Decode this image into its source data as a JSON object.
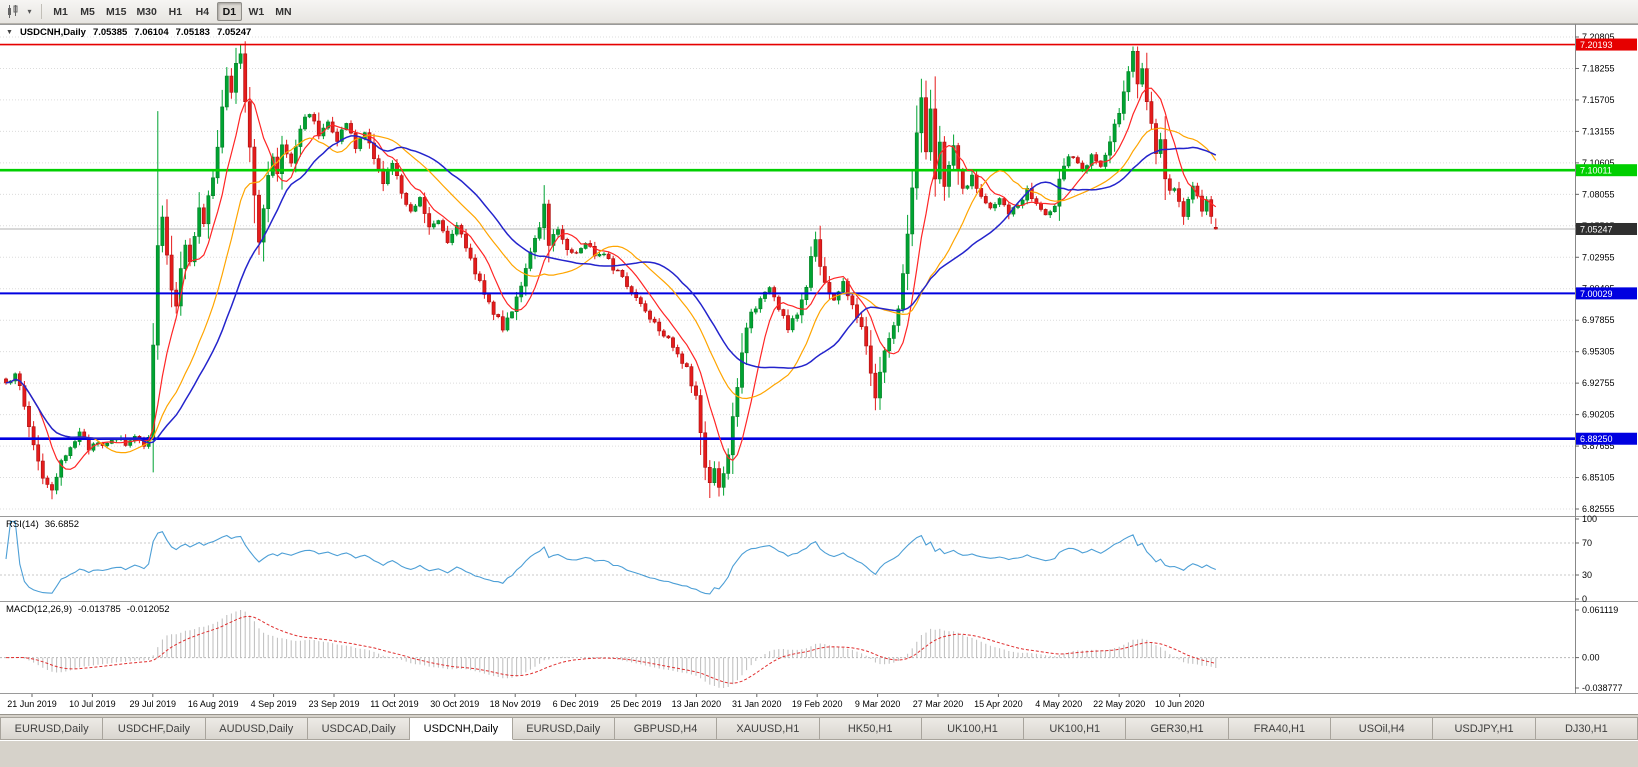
{
  "toolbar": {
    "timeframes": [
      "M1",
      "M5",
      "M15",
      "M30",
      "H1",
      "H4",
      "D1",
      "W1",
      "MN"
    ],
    "active_timeframe": "D1"
  },
  "chart": {
    "symbol_label": "USDCNH,Daily",
    "ohlc": {
      "open": "7.05385",
      "high": "7.06104",
      "low": "7.05183",
      "close": "7.05247"
    },
    "price_scale": [
      "7.20805",
      "7.18255",
      "7.15705",
      "7.13155",
      "7.10605",
      "7.08055",
      "7.05505",
      "7.02955",
      "7.00405",
      "6.97855",
      "6.95305",
      "6.92755",
      "6.90205",
      "6.87655",
      "6.85105",
      "6.82555"
    ],
    "levels": [
      {
        "price": 7.20193,
        "label": "7.20193",
        "color": "#e60000",
        "width": 1.6
      },
      {
        "price": 7.10011,
        "label": "7.10011",
        "color": "#00cf00",
        "width": 2.6
      },
      {
        "price": 7.00029,
        "label": "7.00029",
        "color": "#0000e0",
        "width": 2
      },
      {
        "price": 6.8825,
        "label": "6.88250",
        "color": "#0000e0",
        "width": 2.6
      }
    ],
    "current_price": {
      "value": 7.05247,
      "label": "7.05247",
      "color": "#2f2f2f"
    }
  },
  "indicators": {
    "rsi": {
      "label": "RSI(14)",
      "value": "36.6852",
      "scale": [
        "100",
        "70",
        "30",
        "0"
      ],
      "levels": [
        70,
        30
      ]
    },
    "macd": {
      "label": "MACD(12,26,9)",
      "value_main": "-0.013785",
      "value_signal": "-0.012052",
      "scale": [
        "0.061119",
        "0.00",
        "-0.038777"
      ]
    }
  },
  "tabs": {
    "items": [
      "EURUSD,Daily",
      "USDCHF,Daily",
      "AUDUSD,Daily",
      "USDCAD,Daily",
      "USDCNH,Daily",
      "EURUSD,Daily",
      "GBPUSD,H4",
      "XAUUSD,H1",
      "HK50,H1",
      "UK100,H1",
      "UK100,H1",
      "GER30,H1",
      "FRA40,H1",
      "USOil,H4",
      "USDJPY,H1",
      "DJ30,H1"
    ],
    "active_index": 4
  },
  "chart_data": {
    "type": "candlestick+indicators",
    "symbol": "USDCNH",
    "timeframe": "Daily",
    "bars": 264,
    "y_range": [
      6.82555,
      7.20805
    ],
    "last_ohlc": {
      "open": 7.05385,
      "high": 7.06104,
      "low": 7.05183,
      "close": 7.05247
    },
    "horizontal_lines": [
      7.20193,
      7.10011,
      7.00029,
      6.8825
    ],
    "rsi_value": 36.6852,
    "macd_value": -0.013785,
    "macd_signal_value": -0.012052,
    "date_labels": [
      "21 Jun 2019",
      "10 Jul 2019",
      "29 Jul 2019",
      "16 Aug 2019",
      "4 Sep 2019",
      "23 Sep 2019",
      "11 Oct 2019",
      "30 Oct 2019",
      "18 Nov 2019",
      "6 Dec 2019",
      "25 Dec 2019",
      "13 Jan 2020",
      "31 Jan 2020",
      "19 Feb 2020",
      "9 Mar 2020",
      "27 Mar 2020",
      "15 Apr 2020",
      "4 May 2020",
      "22 May 2020",
      "10 Jun 2020"
    ],
    "price_anchors": [
      [
        0,
        6.925
      ],
      [
        2,
        6.938
      ],
      [
        4,
        6.908
      ],
      [
        6,
        6.878
      ],
      [
        8,
        6.852
      ],
      [
        10,
        6.838
      ],
      [
        12,
        6.862
      ],
      [
        14,
        6.878
      ],
      [
        16,
        6.886
      ],
      [
        18,
        6.875
      ],
      [
        20,
        6.882
      ],
      [
        22,
        6.876
      ],
      [
        24,
        6.884
      ],
      [
        26,
        6.878
      ],
      [
        28,
        6.885
      ],
      [
        30,
        6.879
      ],
      [
        31,
        6.885
      ],
      [
        32,
        6.958
      ],
      [
        33,
        7.042
      ],
      [
        34,
        7.062
      ],
      [
        35,
        7.032
      ],
      [
        36,
        7.005
      ],
      [
        37,
        6.992
      ],
      [
        38,
        7.018
      ],
      [
        39,
        7.042
      ],
      [
        40,
        7.028
      ],
      [
        41,
        7.048
      ],
      [
        42,
        7.068
      ],
      [
        43,
        7.055
      ],
      [
        44,
        7.078
      ],
      [
        45,
        7.095
      ],
      [
        46,
        7.118
      ],
      [
        47,
        7.152
      ],
      [
        48,
        7.175
      ],
      [
        49,
        7.162
      ],
      [
        50,
        7.185
      ],
      [
        51,
        7.196
      ],
      [
        52,
        7.158
      ],
      [
        53,
        7.12
      ],
      [
        54,
        7.078
      ],
      [
        55,
        7.042
      ],
      [
        56,
        7.068
      ],
      [
        57,
        7.095
      ],
      [
        58,
        7.112
      ],
      [
        59,
        7.098
      ],
      [
        60,
        7.122
      ],
      [
        62,
        7.108
      ],
      [
        64,
        7.135
      ],
      [
        66,
        7.148
      ],
      [
        68,
        7.128
      ],
      [
        70,
        7.142
      ],
      [
        72,
        7.125
      ],
      [
        74,
        7.138
      ],
      [
        76,
        7.118
      ],
      [
        78,
        7.132
      ],
      [
        80,
        7.108
      ],
      [
        82,
        7.092
      ],
      [
        84,
        7.105
      ],
      [
        86,
        7.082
      ],
      [
        88,
        7.068
      ],
      [
        90,
        7.078
      ],
      [
        92,
        7.055
      ],
      [
        94,
        7.062
      ],
      [
        96,
        7.042
      ],
      [
        98,
        7.058
      ],
      [
        100,
        7.035
      ],
      [
        102,
        7.018
      ],
      [
        104,
        7.002
      ],
      [
        106,
        6.985
      ],
      [
        108,
        6.972
      ],
      [
        110,
        6.988
      ],
      [
        112,
        7.008
      ],
      [
        114,
        7.032
      ],
      [
        116,
        7.052
      ],
      [
        117,
        7.072
      ],
      [
        118,
        7.042
      ],
      [
        120,
        7.052
      ],
      [
        122,
        7.038
      ],
      [
        124,
        7.032
      ],
      [
        126,
        7.042
      ],
      [
        128,
        7.032
      ],
      [
        130,
        7.035
      ],
      [
        132,
        7.022
      ],
      [
        134,
        7.012
      ],
      [
        136,
        7.002
      ],
      [
        138,
        6.992
      ],
      [
        140,
        6.982
      ],
      [
        142,
        6.972
      ],
      [
        144,
        6.965
      ],
      [
        146,
        6.952
      ],
      [
        148,
        6.938
      ],
      [
        150,
        6.915
      ],
      [
        151,
        6.888
      ],
      [
        152,
        6.862
      ],
      [
        153,
        6.845
      ],
      [
        154,
        6.858
      ],
      [
        155,
        6.842
      ],
      [
        156,
        6.852
      ],
      [
        157,
        6.872
      ],
      [
        158,
        6.898
      ],
      [
        159,
        6.925
      ],
      [
        160,
        6.952
      ],
      [
        161,
        6.972
      ],
      [
        162,
        6.985
      ],
      [
        164,
        6.995
      ],
      [
        166,
        7.005
      ],
      [
        168,
        6.988
      ],
      [
        170,
        6.972
      ],
      [
        172,
        6.985
      ],
      [
        174,
        7.005
      ],
      [
        175,
        7.032
      ],
      [
        176,
        7.045
      ],
      [
        177,
        7.022
      ],
      [
        178,
        7.008
      ],
      [
        180,
        6.995
      ],
      [
        182,
        7.008
      ],
      [
        184,
        6.992
      ],
      [
        186,
        6.975
      ],
      [
        187,
        6.958
      ],
      [
        188,
        6.938
      ],
      [
        189,
        6.918
      ],
      [
        190,
        6.938
      ],
      [
        191,
        6.952
      ],
      [
        192,
        6.965
      ],
      [
        194,
        6.988
      ],
      [
        195,
        7.015
      ],
      [
        196,
        7.048
      ],
      [
        197,
        7.088
      ],
      [
        198,
        7.128
      ],
      [
        199,
        7.158
      ],
      [
        200,
        7.118
      ],
      [
        201,
        7.148
      ],
      [
        202,
        7.092
      ],
      [
        203,
        7.122
      ],
      [
        204,
        7.085
      ],
      [
        205,
        7.105
      ],
      [
        206,
        7.118
      ],
      [
        207,
        7.098
      ],
      [
        208,
        7.085
      ],
      [
        210,
        7.095
      ],
      [
        212,
        7.078
      ],
      [
        214,
        7.068
      ],
      [
        216,
        7.078
      ],
      [
        218,
        7.062
      ],
      [
        220,
        7.072
      ],
      [
        222,
        7.085
      ],
      [
        224,
        7.075
      ],
      [
        226,
        7.062
      ],
      [
        228,
        7.068
      ],
      [
        229,
        7.092
      ],
      [
        230,
        7.105
      ],
      [
        232,
        7.112
      ],
      [
        234,
        7.098
      ],
      [
        236,
        7.112
      ],
      [
        238,
        7.102
      ],
      [
        240,
        7.122
      ],
      [
        242,
        7.148
      ],
      [
        243,
        7.165
      ],
      [
        244,
        7.182
      ],
      [
        245,
        7.195
      ],
      [
        246,
        7.172
      ],
      [
        247,
        7.182
      ],
      [
        248,
        7.158
      ],
      [
        249,
        7.135
      ],
      [
        250,
        7.112
      ],
      [
        251,
        7.122
      ],
      [
        252,
        7.095
      ],
      [
        253,
        7.082
      ],
      [
        254,
        7.088
      ],
      [
        255,
        7.072
      ],
      [
        256,
        7.062
      ],
      [
        257,
        7.075
      ],
      [
        258,
        7.085
      ],
      [
        259,
        7.078
      ],
      [
        260,
        7.068
      ],
      [
        261,
        7.078
      ],
      [
        262,
        7.06
      ],
      [
        263,
        7.0525
      ]
    ],
    "forced_wicks": [
      {
        "i": 10,
        "low": 6.8335
      },
      {
        "i": 33,
        "high": 7.148,
        "low": 6.95
      },
      {
        "i": 51,
        "high": 7.2015
      },
      {
        "i": 117,
        "high": 7.088
      },
      {
        "i": 153,
        "low": 6.8345
      },
      {
        "i": 155,
        "low": 6.8385
      },
      {
        "i": 189,
        "low": 6.9055
      },
      {
        "i": 199,
        "high": 7.166
      },
      {
        "i": 245,
        "high": 7.1985
      }
    ],
    "moving_averages": [
      {
        "period": 8,
        "color": "#ff2626",
        "width": 1.2
      },
      {
        "period": 20,
        "color": "#ffa500",
        "width": 1.2
      },
      {
        "period": 30,
        "color": "#2424cc",
        "width": 1.5
      }
    ],
    "colors": {
      "bull": "#00a332",
      "bull_dark": "#067f26",
      "bear": "#e51c1c",
      "bear_dark": "#a80f0f",
      "rsi": "#4d9fd6",
      "macd_hist": "#bdbdbd",
      "macd_signal": "#e03030"
    }
  }
}
